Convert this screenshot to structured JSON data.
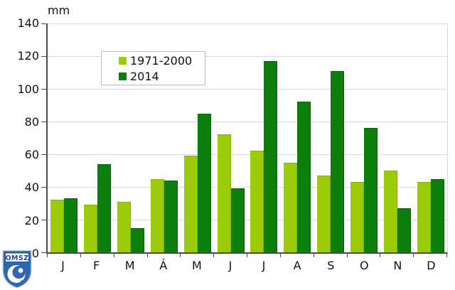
{
  "chart_data": {
    "type": "bar",
    "title": "",
    "unit_label": "mm",
    "categories": [
      "J",
      "F",
      "M",
      "Á",
      "M",
      "J",
      "J",
      "A",
      "S",
      "O",
      "N",
      "D"
    ],
    "series": [
      {
        "name": "1971-2000",
        "color": "#9CCB0A",
        "edge_color": "#86AF09",
        "values": [
          32,
          29,
          31,
          45,
          59,
          72,
          62,
          55,
          47,
          43,
          50,
          43
        ]
      },
      {
        "name": "2014",
        "color": "#0B7E0B",
        "edge_color": "#076007",
        "values": [
          33,
          54,
          15,
          44,
          85,
          39,
          117,
          92,
          111,
          76,
          27,
          45
        ]
      }
    ],
    "ylim": [
      0,
      140
    ],
    "yticks": [
      0,
      20,
      40,
      60,
      80,
      100,
      120,
      140
    ],
    "grid": true,
    "legend_position": "top-left"
  },
  "colors": {
    "grid": "#d9d9d9",
    "axis": "#4a4a4a",
    "text": "#111111",
    "legend_border": "#c0c0c0",
    "logo_blue": "#2E66B0",
    "background": "#ffffff"
  },
  "logo": {
    "text": "OMSZ"
  }
}
